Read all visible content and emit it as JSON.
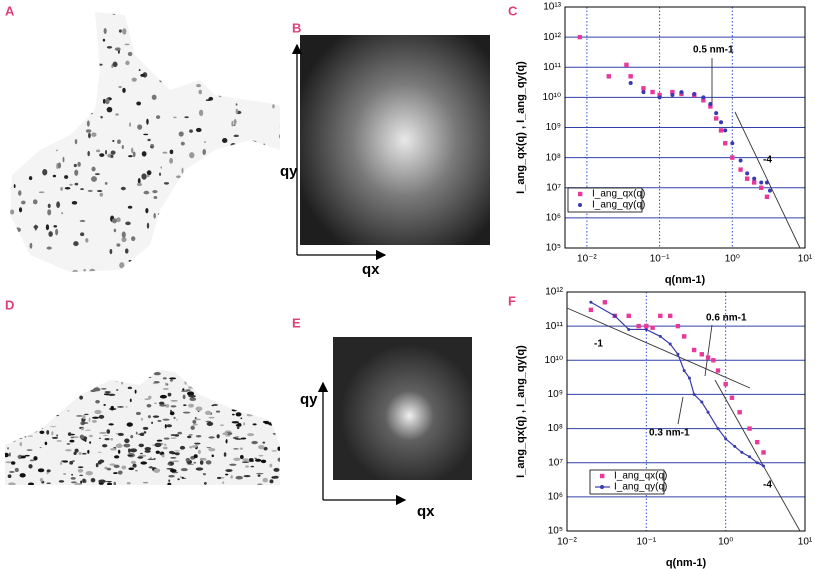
{
  "figure": {
    "panel_labels": [
      "A",
      "B",
      "C",
      "D",
      "E",
      "F"
    ],
    "fft_axes": [
      {
        "qy": "qy",
        "qx": "qx"
      },
      {
        "qy": "qy",
        "qx": "qx"
      }
    ]
  },
  "chart_data": [
    {
      "type": "scatter",
      "x_label": "q(nm-1)",
      "y_label": "I_ang_qx(q) , I_ang_qy(q)",
      "log_x": true,
      "log_y": true,
      "grid": true,
      "legend": "lower-left",
      "xlim": [
        0.005,
        10
      ],
      "ylim": [
        100000,
        10000000000000
      ],
      "xticks": [
        {
          "value": 0.01,
          "label": "10⁻²"
        },
        {
          "value": 0.1,
          "label": "10⁻¹"
        },
        {
          "value": 1,
          "label": "10⁰"
        },
        {
          "value": 10,
          "label": "10¹"
        }
      ],
      "yticks": [
        {
          "value": 100000,
          "label": "10⁵"
        },
        {
          "value": 1000000,
          "label": "10⁶"
        },
        {
          "value": 10000000,
          "label": "10⁷"
        },
        {
          "value": 100000000,
          "label": "10⁸"
        },
        {
          "value": 1000000000,
          "label": "10⁹"
        },
        {
          "value": 10000000000,
          "label": "10¹⁰"
        },
        {
          "value": 100000000000,
          "label": "10¹¹"
        },
        {
          "value": 1000000000000,
          "label": "10¹²"
        },
        {
          "value": 10000000000000,
          "label": "10¹³"
        }
      ],
      "annotations": [
        "0.5 nm-1",
        "-4"
      ],
      "series": [
        {
          "name": "I_ang_qx(q)",
          "color": "#e8389a",
          "marker": "square",
          "x": [
            0.008,
            0.02,
            0.035,
            0.04,
            0.06,
            0.08,
            0.1,
            0.15,
            0.2,
            0.3,
            0.4,
            0.5,
            0.6,
            0.7,
            0.8,
            1,
            1.3,
            1.6,
            2,
            2.5,
            3
          ],
          "values": [
            1000000000000,
            50000000000,
            120000000000,
            50000000000,
            20000000000,
            15000000000,
            12000000000,
            15000000000,
            13000000000,
            12000000000,
            8000000000,
            5000000000,
            2000000000,
            800000000,
            300000000,
            100000000,
            40000000,
            20000000,
            15000000,
            10000000,
            5000000
          ]
        },
        {
          "name": "I_ang_qy(q)",
          "color": "#3a3ab0",
          "marker": "dot",
          "x": [
            0.04,
            0.06,
            0.1,
            0.15,
            0.2,
            0.3,
            0.4,
            0.5,
            0.6,
            0.7,
            0.8,
            1,
            1.3,
            1.6,
            2,
            2.5,
            3,
            3.3
          ],
          "values": [
            30000000000,
            15000000000,
            10000000000,
            12000000000,
            15000000000,
            13000000000,
            10000000000,
            6000000000,
            3000000000,
            1500000000,
            800000000,
            300000000,
            80000000,
            30000000,
            20000000,
            15000000,
            15000000,
            8000000
          ]
        }
      ]
    },
    {
      "type": "scatter",
      "x_label": "q(nm-1)",
      "y_label": "I_ang_qx(q) , I_ang_qy(q)",
      "log_x": true,
      "log_y": true,
      "grid": true,
      "legend": "lower-left",
      "xlim": [
        0.01,
        10
      ],
      "ylim": [
        100000,
        1000000000000
      ],
      "xticks": [
        {
          "value": 0.01,
          "label": "10⁻²"
        },
        {
          "value": 0.1,
          "label": "10⁻¹"
        },
        {
          "value": 1,
          "label": "10⁰"
        },
        {
          "value": 10,
          "label": "10¹"
        }
      ],
      "yticks": [
        {
          "value": 100000,
          "label": "10⁵"
        },
        {
          "value": 1000000,
          "label": "10⁶"
        },
        {
          "value": 10000000,
          "label": "10⁷"
        },
        {
          "value": 100000000,
          "label": "10⁸"
        },
        {
          "value": 1000000000,
          "label": "10⁹"
        },
        {
          "value": 10000000000,
          "label": "10¹⁰"
        },
        {
          "value": 100000000000,
          "label": "10¹¹"
        },
        {
          "value": 1000000000000,
          "label": "10¹²"
        }
      ],
      "annotations": [
        "-1",
        "0.6 nm-1",
        "0.3 nm-1",
        "-4"
      ],
      "series": [
        {
          "name": "I_ang_qx(q)",
          "color": "#e8389a",
          "marker": "square",
          "x": [
            0.02,
            0.03,
            0.04,
            0.06,
            0.08,
            0.1,
            0.12,
            0.15,
            0.2,
            0.25,
            0.3,
            0.4,
            0.5,
            0.6,
            0.7,
            0.8,
            1,
            1.2,
            1.5,
            2,
            2.5,
            3
          ],
          "values": [
            300000000000,
            500000000000,
            200000000000,
            200000000000,
            100000000000,
            100000000000,
            90000000000,
            200000000000,
            200000000000,
            100000000000,
            50000000000,
            20000000000,
            15000000000,
            12000000000,
            10000000000,
            5000000000,
            2000000000,
            800000000,
            300000000,
            100000000,
            40000000,
            20000000
          ]
        },
        {
          "name": "I_ang_qy(q)",
          "color": "#3a3ab0",
          "marker": "line",
          "x": [
            0.02,
            0.04,
            0.06,
            0.1,
            0.15,
            0.2,
            0.25,
            0.3,
            0.35,
            0.4,
            0.5,
            0.6,
            0.8,
            1,
            1.3,
            1.6,
            2,
            2.5,
            3
          ],
          "values": [
            500000000000,
            200000000000,
            80000000000,
            80000000000,
            50000000000,
            30000000000,
            15000000000,
            5000000000,
            3000000000,
            1000000000,
            600000000,
            300000000,
            100000000,
            50000000,
            30000000,
            20000000,
            15000000,
            10000000,
            8000000
          ]
        }
      ]
    }
  ]
}
